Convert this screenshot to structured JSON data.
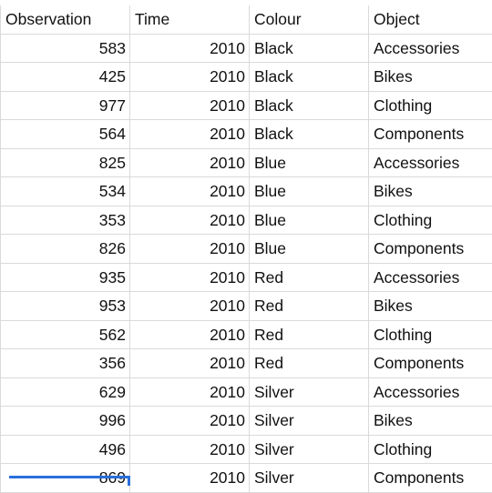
{
  "table": {
    "headers": [
      "Observation",
      "Time",
      "Colour",
      "Object"
    ],
    "rows": [
      {
        "observation": "583",
        "time": "2010",
        "colour": "Black",
        "object": "Accessories"
      },
      {
        "observation": "425",
        "time": "2010",
        "colour": "Black",
        "object": "Bikes"
      },
      {
        "observation": "977",
        "time": "2010",
        "colour": "Black",
        "object": "Clothing"
      },
      {
        "observation": "564",
        "time": "2010",
        "colour": "Black",
        "object": "Components"
      },
      {
        "observation": "825",
        "time": "2010",
        "colour": "Blue",
        "object": "Accessories"
      },
      {
        "observation": "534",
        "time": "2010",
        "colour": "Blue",
        "object": "Bikes"
      },
      {
        "observation": "353",
        "time": "2010",
        "colour": "Blue",
        "object": "Clothing"
      },
      {
        "observation": "826",
        "time": "2010",
        "colour": "Blue",
        "object": "Components"
      },
      {
        "observation": "935",
        "time": "2010",
        "colour": "Red",
        "object": "Accessories"
      },
      {
        "observation": "953",
        "time": "2010",
        "colour": "Red",
        "object": "Bikes"
      },
      {
        "observation": "562",
        "time": "2010",
        "colour": "Red",
        "object": "Clothing"
      },
      {
        "observation": "356",
        "time": "2010",
        "colour": "Red",
        "object": "Components"
      },
      {
        "observation": "629",
        "time": "2010",
        "colour": "Silver",
        "object": "Accessories"
      },
      {
        "observation": "996",
        "time": "2010",
        "colour": "Silver",
        "object": "Bikes"
      },
      {
        "observation": "496",
        "time": "2010",
        "colour": "Silver",
        "object": "Clothing"
      },
      {
        "observation": "869",
        "time": "2010",
        "colour": "Silver",
        "object": "Components"
      }
    ]
  },
  "colors": {
    "grid_line": "#dadada",
    "text": "#111111",
    "selection": "#2a6fdb"
  }
}
